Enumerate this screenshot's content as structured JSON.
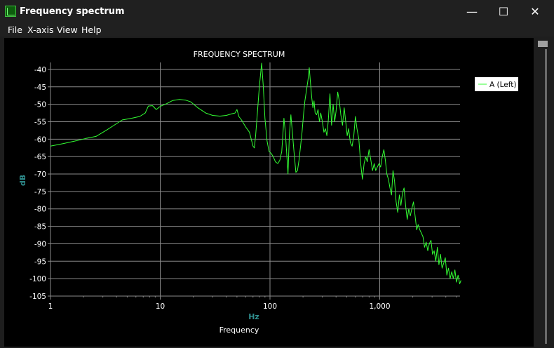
{
  "window": {
    "title": "Frequency spectrum",
    "controls": {
      "minimize": "—",
      "maximize": "☐",
      "close": "✕"
    }
  },
  "menu": [
    "File",
    "X-axis",
    "View",
    "Help"
  ],
  "chart_data": {
    "type": "line",
    "title": "FREQUENCY SPECTRUM",
    "xlabel": "Hz",
    "xlabel_sub": "Frequency",
    "ylabel": "dB",
    "xscale": "log",
    "xlim": [
      1,
      5500
    ],
    "ylim": [
      -105,
      -38
    ],
    "x_ticks": [
      {
        "v": 1,
        "label": "1"
      },
      {
        "v": 10,
        "label": "10"
      },
      {
        "v": 100,
        "label": "100"
      },
      {
        "v": 1000,
        "label": "1,000"
      }
    ],
    "y_ticks": [
      -40,
      -45,
      -50,
      -55,
      -60,
      -65,
      -70,
      -75,
      -80,
      -85,
      -90,
      -95,
      -100,
      -105
    ],
    "grid": true,
    "legend_position": "top-right",
    "colors": {
      "series": "#33ff33",
      "grid": "#8a8a8a",
      "axis_label": "#2f8f8f",
      "text": "#ffffff"
    },
    "series": [
      {
        "name": "A (Left)",
        "points": [
          [
            1,
            -62
          ],
          [
            1.3,
            -61.3
          ],
          [
            1.7,
            -60.5
          ],
          [
            2.1,
            -59.8
          ],
          [
            2.6,
            -59.2
          ],
          [
            3.2,
            -57.5
          ],
          [
            3.8,
            -56
          ],
          [
            4.5,
            -54.5
          ],
          [
            5.5,
            -54
          ],
          [
            6.5,
            -53.5
          ],
          [
            7.3,
            -52.5
          ],
          [
            7.8,
            -50.5
          ],
          [
            8.5,
            -50.4
          ],
          [
            9.2,
            -51.5
          ],
          [
            10,
            -50.6
          ],
          [
            11.5,
            -49.8
          ],
          [
            13,
            -48.9
          ],
          [
            15,
            -48.6
          ],
          [
            17,
            -48.8
          ],
          [
            19,
            -49.3
          ],
          [
            22,
            -51
          ],
          [
            26,
            -52.5
          ],
          [
            30,
            -53.2
          ],
          [
            35,
            -53.4
          ],
          [
            40,
            -53.2
          ],
          [
            45,
            -52.7
          ],
          [
            48,
            -52.5
          ],
          [
            50,
            -51.5
          ],
          [
            52,
            -53.5
          ],
          [
            55,
            -54.5
          ],
          [
            60,
            -56.5
          ],
          [
            65,
            -58
          ],
          [
            70,
            -62
          ],
          [
            72,
            -62.5
          ],
          [
            74,
            -59
          ],
          [
            77,
            -52
          ],
          [
            80,
            -45
          ],
          [
            84,
            -38.2
          ],
          [
            87,
            -45
          ],
          [
            90,
            -54
          ],
          [
            94,
            -60.5
          ],
          [
            98,
            -63.5
          ],
          [
            102,
            -64
          ],
          [
            107,
            -65
          ],
          [
            112,
            -66.5
          ],
          [
            118,
            -67
          ],
          [
            123,
            -66
          ],
          [
            128,
            -63.5
          ],
          [
            134,
            -54
          ],
          [
            138,
            -58
          ],
          [
            142,
            -64
          ],
          [
            146,
            -70
          ],
          [
            150,
            -59
          ],
          [
            155,
            -53
          ],
          [
            160,
            -58
          ],
          [
            166,
            -64
          ],
          [
            172,
            -69.5
          ],
          [
            178,
            -69
          ],
          [
            184,
            -66
          ],
          [
            190,
            -62
          ],
          [
            196,
            -58
          ],
          [
            202,
            -53
          ],
          [
            208,
            -49
          ],
          [
            215,
            -46
          ],
          [
            222,
            -43
          ],
          [
            228,
            -39.5
          ],
          [
            234,
            -44
          ],
          [
            240,
            -48
          ],
          [
            246,
            -51
          ],
          [
            252,
            -49
          ],
          [
            258,
            -52.5
          ],
          [
            266,
            -53
          ],
          [
            274,
            -51.5
          ],
          [
            282,
            -55
          ],
          [
            290,
            -52.5
          ],
          [
            300,
            -55
          ],
          [
            310,
            -58
          ],
          [
            320,
            -57
          ],
          [
            330,
            -59
          ],
          [
            340,
            -54.5
          ],
          [
            352,
            -47
          ],
          [
            364,
            -56
          ],
          [
            376,
            -50
          ],
          [
            388,
            -55
          ],
          [
            400,
            -52
          ],
          [
            414,
            -46.5
          ],
          [
            428,
            -49
          ],
          [
            442,
            -53
          ],
          [
            458,
            -56
          ],
          [
            474,
            -51
          ],
          [
            490,
            -55
          ],
          [
            505,
            -59
          ],
          [
            520,
            -57
          ],
          [
            540,
            -61
          ],
          [
            560,
            -62
          ],
          [
            580,
            -59
          ],
          [
            600,
            -53.5
          ],
          [
            620,
            -57
          ],
          [
            645,
            -60
          ],
          [
            670,
            -67
          ],
          [
            695,
            -71.5
          ],
          [
            720,
            -67
          ],
          [
            745,
            -65
          ],
          [
            770,
            -66.5
          ],
          [
            800,
            -63
          ],
          [
            830,
            -66
          ],
          [
            860,
            -69
          ],
          [
            890,
            -67
          ],
          [
            920,
            -69
          ],
          [
            950,
            -68
          ],
          [
            985,
            -67
          ],
          [
            1020,
            -68
          ],
          [
            1055,
            -65
          ],
          [
            1090,
            -63
          ],
          [
            1125,
            -66
          ],
          [
            1160,
            -70
          ],
          [
            1200,
            -71.5
          ],
          [
            1240,
            -74
          ],
          [
            1280,
            -76
          ],
          [
            1320,
            -69
          ],
          [
            1365,
            -72
          ],
          [
            1410,
            -78
          ],
          [
            1460,
            -81
          ],
          [
            1510,
            -76
          ],
          [
            1560,
            -79
          ],
          [
            1610,
            -75.5
          ],
          [
            1665,
            -74
          ],
          [
            1720,
            -79
          ],
          [
            1780,
            -83
          ],
          [
            1840,
            -80
          ],
          [
            1900,
            -82
          ],
          [
            1960,
            -80
          ],
          [
            2030,
            -78
          ],
          [
            2100,
            -82
          ],
          [
            2170,
            -86
          ],
          [
            2240,
            -84.5
          ],
          [
            2320,
            -86
          ],
          [
            2400,
            -87
          ],
          [
            2480,
            -88
          ],
          [
            2560,
            -91
          ],
          [
            2650,
            -89.5
          ],
          [
            2740,
            -92
          ],
          [
            2830,
            -90
          ],
          [
            2930,
            -89
          ],
          [
            3030,
            -93
          ],
          [
            3130,
            -92
          ],
          [
            3240,
            -95
          ],
          [
            3350,
            -91
          ],
          [
            3460,
            -96
          ],
          [
            3580,
            -93
          ],
          [
            3700,
            -97
          ],
          [
            3830,
            -95.5
          ],
          [
            3960,
            -94
          ],
          [
            4090,
            -99
          ],
          [
            4230,
            -97
          ],
          [
            4380,
            -100
          ],
          [
            4530,
            -98
          ],
          [
            4680,
            -100
          ],
          [
            4840,
            -97.5
          ],
          [
            5000,
            -101
          ],
          [
            5170,
            -99
          ],
          [
            5350,
            -101.5
          ],
          [
            5500,
            -100.5
          ]
        ]
      }
    ]
  }
}
